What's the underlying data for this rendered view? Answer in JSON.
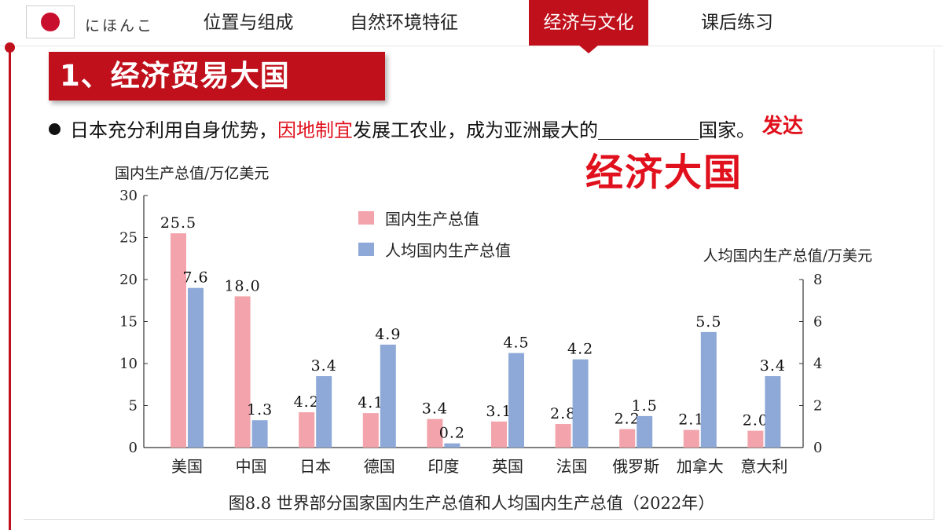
{
  "header": {
    "brand": "にほんこ",
    "tabs": [
      {
        "label": "位置与组成"
      },
      {
        "label": "自然环境特征"
      },
      {
        "label": "经济与文化",
        "active": true
      },
      {
        "label": "课后练习"
      }
    ]
  },
  "section_title": "1、经济贸易大国",
  "statement": {
    "part1": "日本充分利用自身优势，",
    "highlight": "因地制宜",
    "part2": "发展工农业，成为亚洲最大的",
    "part3": "国家。"
  },
  "answers": {
    "blank_answer": "发达",
    "overlay": "经济大国"
  },
  "colors": {
    "accent": "#c0101c",
    "gdp_bar": "#f2a3ab",
    "per_capita_bar": "#8ea9d8"
  },
  "chart_data": {
    "type": "bar",
    "title": "图8.8  世界部分国家国内生产总值和人均国内生产总值（2022年）",
    "categories": [
      "美国",
      "中国",
      "日本",
      "德国",
      "印度",
      "英国",
      "法国",
      "俄罗斯",
      "加拿大",
      "意大利"
    ],
    "series": [
      {
        "name": "国内生产总值",
        "axis": "left",
        "values": [
          25.5,
          18.0,
          4.2,
          4.1,
          3.4,
          3.1,
          2.8,
          2.2,
          2.1,
          2.0
        ]
      },
      {
        "name": "人均国内生产总值",
        "axis": "right",
        "values": [
          7.6,
          1.3,
          3.4,
          4.9,
          0.2,
          4.5,
          4.2,
          1.5,
          5.5,
          3.4
        ]
      }
    ],
    "value_labels": [
      [
        "25.5",
        "18.0",
        "4.2",
        "4.1",
        "3.4",
        "3.1",
        "2.8",
        "2.2",
        "2.1",
        "2.0"
      ],
      [
        "7.6",
        "1.3",
        "3.4",
        "4.9",
        "0.2",
        "4.5",
        "4.2",
        "1.5",
        "5.5",
        "3.4"
      ]
    ],
    "ylabel_left": "国内生产总值/万亿美元",
    "ylabel_right": "人均国内生产总值/万美元",
    "ylim_left": [
      0,
      30
    ],
    "ylim_right": [
      0,
      8
    ],
    "yticks_left": [
      0,
      5,
      10,
      15,
      20,
      25,
      30
    ],
    "yticks_right": [
      0,
      2,
      4,
      6,
      8
    ],
    "grid": false,
    "legend_position": "top-center"
  }
}
